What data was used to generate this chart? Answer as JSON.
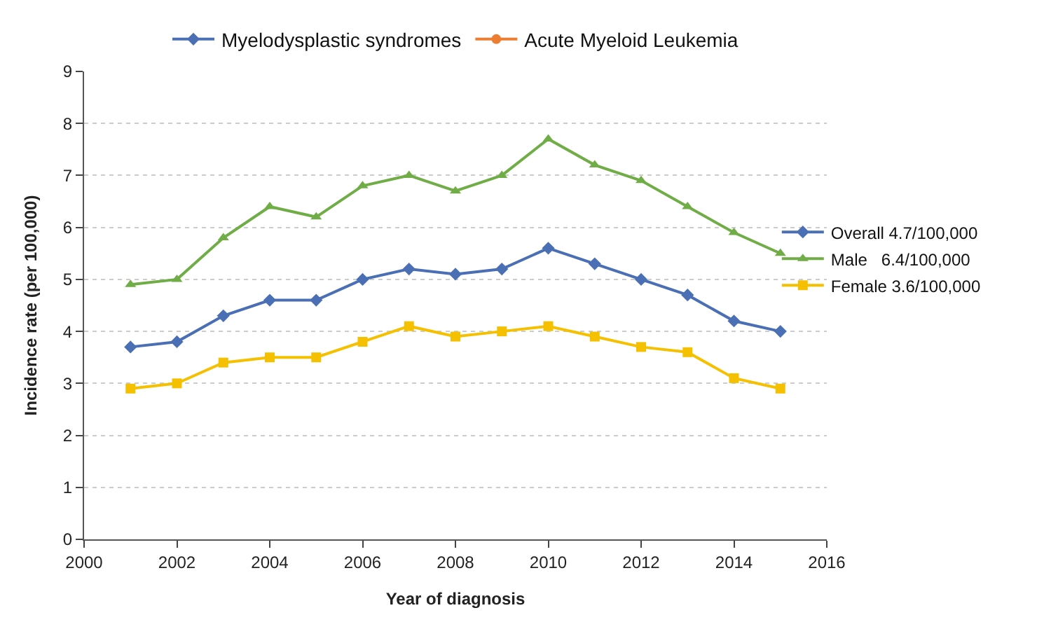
{
  "chart_data": {
    "type": "line",
    "xlabel": "Year of diagnosis",
    "ylabel": "Incidence rate (per 100,000)",
    "x": [
      2001,
      2002,
      2003,
      2004,
      2005,
      2006,
      2007,
      2008,
      2009,
      2010,
      2011,
      2012,
      2013,
      2014,
      2015
    ],
    "series": [
      {
        "name": "Myelodysplastic syndromes",
        "color": "#4a6fb5",
        "marker": "diamond",
        "values": [
          null,
          null,
          null,
          null,
          null,
          null,
          null,
          null,
          null,
          null,
          null,
          null,
          null,
          null,
          null
        ]
      },
      {
        "name": "Acute Myeloid Leukemia",
        "color": "#ed7d31",
        "marker": "circle",
        "values": [
          null,
          null,
          null,
          null,
          null,
          null,
          null,
          null,
          null,
          null,
          null,
          null,
          null,
          null,
          null
        ]
      },
      {
        "name": "Overall 4.7/100,000",
        "color": "#4a6fb5",
        "marker": "diamond",
        "values": [
          3.7,
          3.8,
          4.3,
          4.6,
          4.6,
          5.0,
          5.2,
          5.1,
          5.2,
          5.6,
          5.3,
          5.0,
          4.7,
          4.2,
          4.0
        ]
      },
      {
        "name": "Male   6.4/100,000",
        "color": "#70ad47",
        "marker": "triangle",
        "values": [
          4.9,
          5.0,
          5.8,
          6.4,
          6.2,
          6.8,
          7.0,
          6.7,
          7.0,
          7.7,
          7.2,
          6.9,
          6.4,
          5.9,
          5.5
        ]
      },
      {
        "name": "Female 3.6/100,000",
        "color": "#f5c000",
        "marker": "square",
        "values": [
          2.9,
          3.0,
          3.4,
          3.5,
          3.5,
          3.8,
          4.1,
          3.9,
          4.0,
          4.1,
          3.9,
          3.7,
          3.6,
          3.1,
          2.9
        ]
      }
    ],
    "xlim": [
      2000,
      2016
    ],
    "xticks": [
      2000,
      2002,
      2004,
      2006,
      2008,
      2010,
      2012,
      2014,
      2016
    ],
    "ylim": [
      0,
      9
    ],
    "yticks": [
      0,
      1,
      2,
      3,
      4,
      5,
      6,
      7,
      8,
      9
    ],
    "grid": "y",
    "legend": "top",
    "line_style": "solid"
  }
}
